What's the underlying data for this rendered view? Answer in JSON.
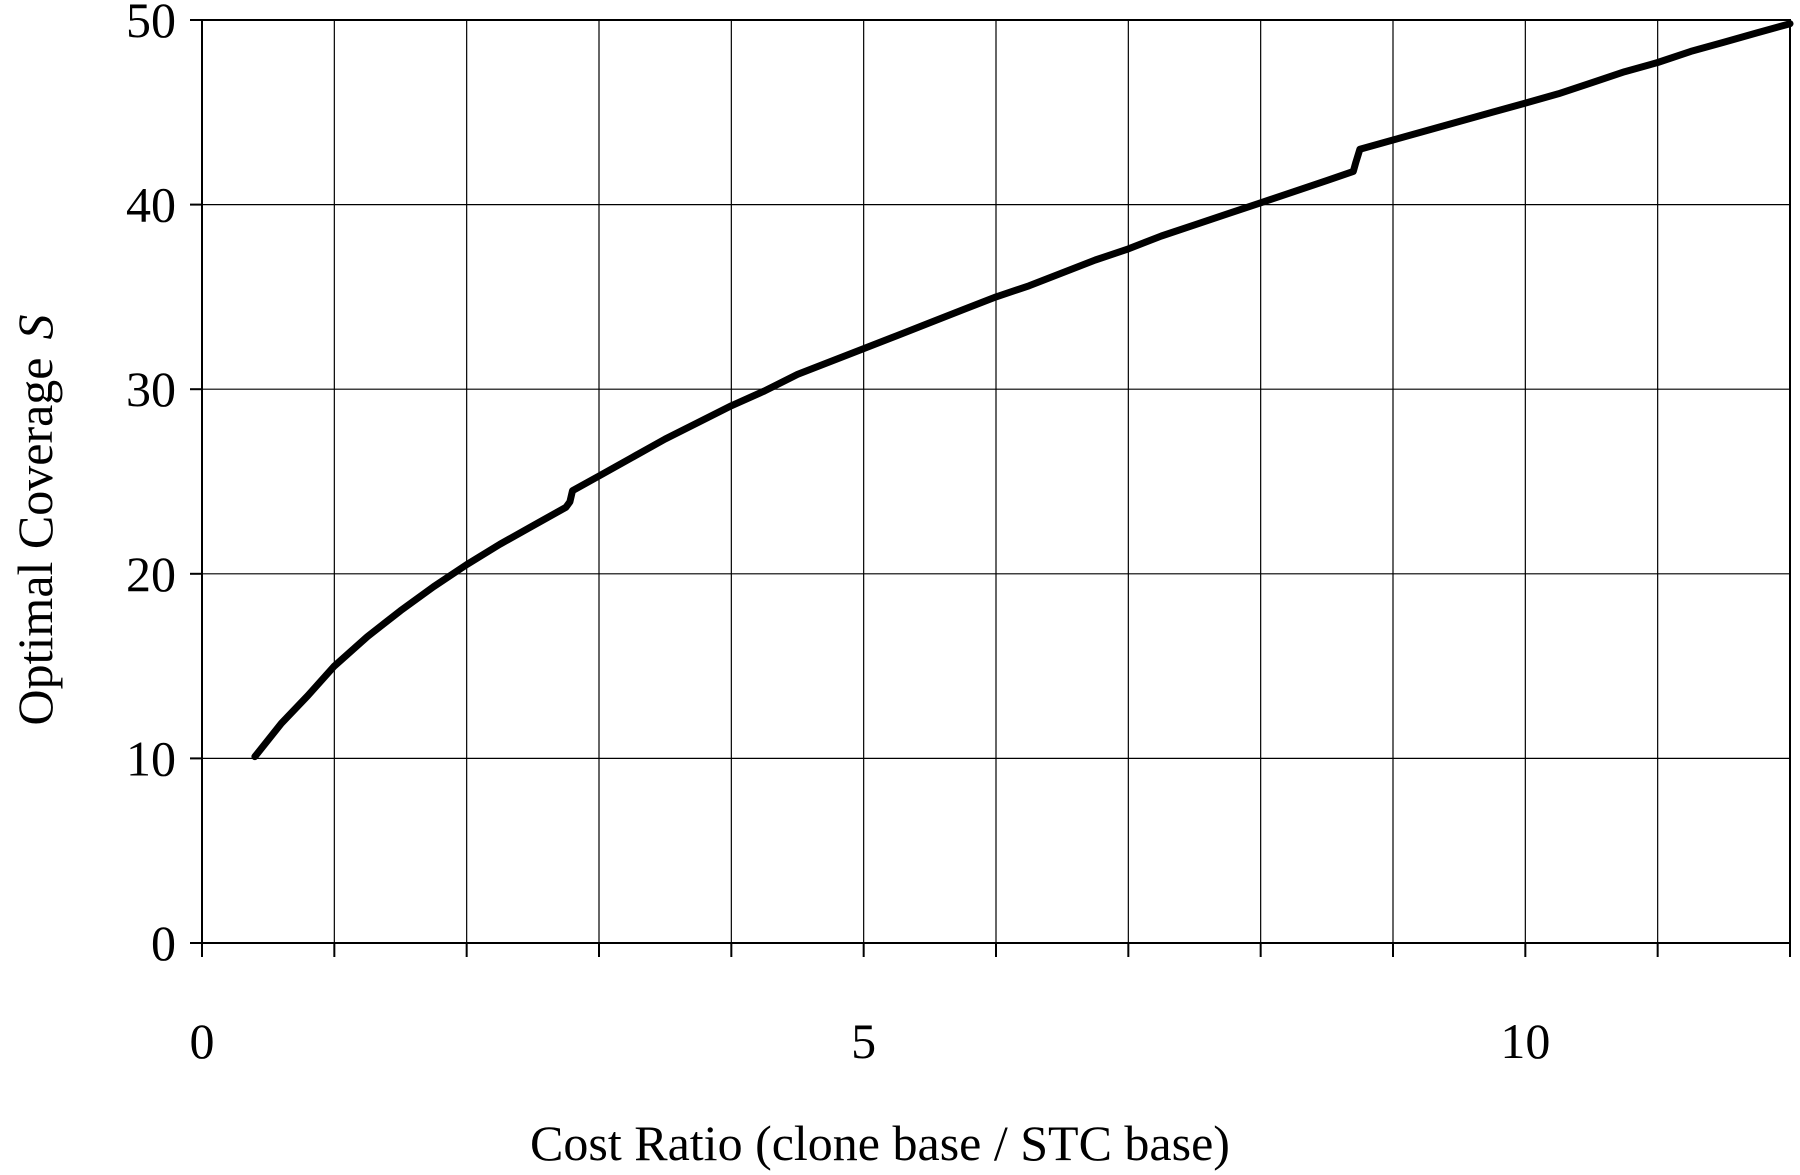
{
  "chart_data": {
    "type": "line",
    "title": "",
    "xlabel": "Cost Ratio (clone base / STC base)",
    "ylabel": "Optimal Coverage",
    "ylabel_symbol": "S",
    "xlim": [
      0,
      12
    ],
    "ylim": [
      0,
      50
    ],
    "x_ticks": [
      0,
      5,
      10
    ],
    "x_tick_labels": [
      "0",
      "5",
      "10"
    ],
    "x_gridlines": [
      1,
      2,
      3,
      4,
      5,
      6,
      7,
      8,
      9,
      10,
      11,
      12
    ],
    "y_ticks": [
      0,
      10,
      20,
      30,
      40,
      50
    ],
    "y_tick_labels": [
      "0",
      "10",
      "20",
      "30",
      "40",
      "50"
    ],
    "grid": true,
    "legend": "none",
    "line_color": "#000000",
    "series": [
      {
        "x": [
          0.4,
          0.6,
          0.8,
          1.0,
          1.25,
          1.5,
          1.75,
          2.0,
          2.25,
          2.5,
          2.75,
          2.78,
          2.8,
          3.0,
          3.25,
          3.5,
          3.75,
          4.0,
          4.25,
          4.5,
          4.75,
          5.0,
          5.25,
          5.5,
          5.75,
          6.0,
          6.25,
          6.5,
          6.75,
          7.0,
          7.25,
          7.5,
          7.75,
          8.0,
          8.25,
          8.5,
          8.7,
          8.72,
          8.75,
          9.0,
          9.25,
          9.5,
          9.75,
          10.0,
          10.25,
          10.5,
          10.75,
          11.0,
          11.25,
          11.5,
          11.75,
          12.0
        ],
        "y": [
          10.1,
          11.9,
          13.4,
          15.0,
          16.6,
          18.0,
          19.3,
          20.5,
          21.6,
          22.6,
          23.6,
          23.9,
          24.5,
          25.3,
          26.3,
          27.3,
          28.2,
          29.1,
          29.9,
          30.8,
          31.5,
          32.2,
          32.9,
          33.6,
          34.3,
          35.0,
          35.6,
          36.3,
          37.0,
          37.6,
          38.3,
          38.9,
          39.5,
          40.1,
          40.7,
          41.3,
          41.8,
          42.3,
          43.0,
          43.5,
          44.0,
          44.5,
          45.0,
          45.5,
          46.0,
          46.6,
          47.2,
          47.7,
          48.3,
          48.8,
          49.3,
          49.8
        ]
      }
    ]
  }
}
